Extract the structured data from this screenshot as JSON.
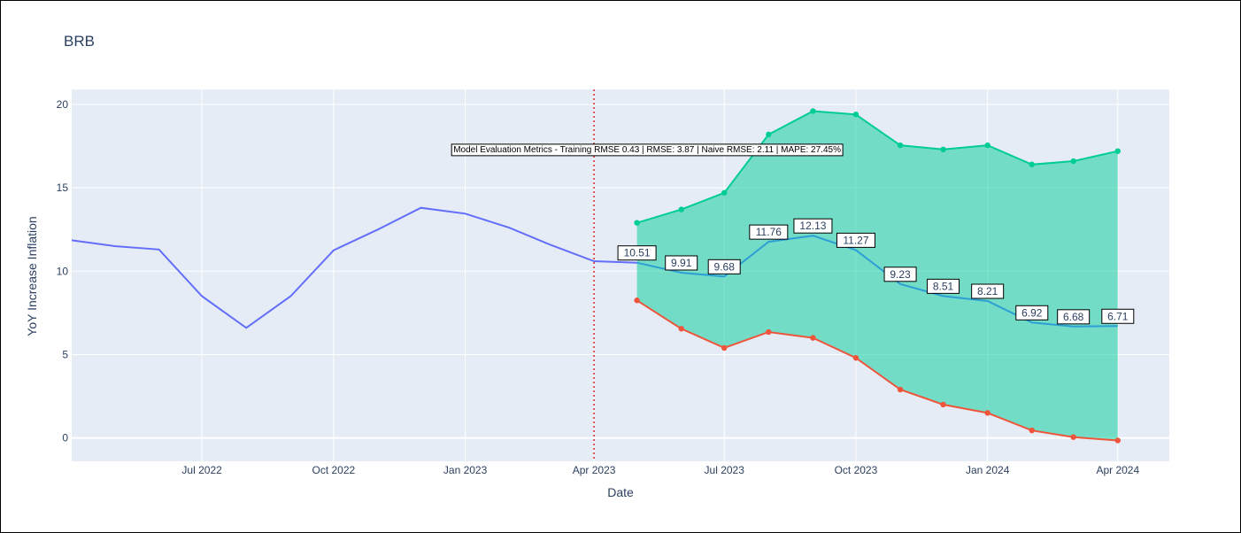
{
  "chart_data": {
    "type": "line",
    "title": "BRB",
    "xlabel": "Date",
    "ylabel": "YoY Increase Inflation",
    "x_range": [
      "2022-04-01",
      "2024-05-07"
    ],
    "ylim": [
      -1.4,
      20.9
    ],
    "grid": true,
    "legend": "none",
    "x_ticks": [
      {
        "date": "2022-07-01",
        "label": "Jul 2022"
      },
      {
        "date": "2022-10-01",
        "label": "Oct 2022"
      },
      {
        "date": "2023-01-01",
        "label": "Jan 2023"
      },
      {
        "date": "2023-04-01",
        "label": "Apr 2023"
      },
      {
        "date": "2023-07-01",
        "label": "Jul 2023"
      },
      {
        "date": "2023-10-01",
        "label": "Oct 2023"
      },
      {
        "date": "2024-01-01",
        "label": "Jan 2024"
      },
      {
        "date": "2024-04-01",
        "label": "Apr 2024"
      }
    ],
    "y_ticks": [
      0,
      5,
      10,
      15,
      20
    ],
    "forecast_start": "2023-04-01",
    "annotation": "Model Evaluation Metrics - Training RMSE 0.43 | RMSE: 3.87 | Naive RMSE: 2.11 | MAPE: 27.45%",
    "actual": {
      "x": [
        "2022-04-01",
        "2022-05-01",
        "2022-06-01",
        "2022-07-01",
        "2022-08-01",
        "2022-09-01",
        "2022-10-01",
        "2022-11-01",
        "2022-12-01",
        "2023-01-01",
        "2023-02-01",
        "2023-03-01",
        "2023-04-01",
        "2023-05-01"
      ],
      "y": [
        11.85,
        11.5,
        11.3,
        8.5,
        6.6,
        8.5,
        11.25,
        12.5,
        13.8,
        13.45,
        12.6,
        11.6,
        10.6,
        10.51
      ]
    },
    "forecast": {
      "x": [
        "2023-05-01",
        "2023-06-01",
        "2023-07-01",
        "2023-08-01",
        "2023-09-01",
        "2023-10-01",
        "2023-11-01",
        "2023-12-01",
        "2024-01-01",
        "2024-02-01",
        "2024-03-01",
        "2024-04-01"
      ],
      "y": [
        10.51,
        9.91,
        9.68,
        11.76,
        12.13,
        11.27,
        9.23,
        8.51,
        8.21,
        6.92,
        6.68,
        6.71
      ],
      "labels": [
        "10.51",
        "9.91",
        "9.68",
        "11.76",
        "12.13",
        "11.27",
        "9.23",
        "8.51",
        "8.21",
        "6.92",
        "6.68",
        "6.71"
      ]
    },
    "upper_bound": {
      "x": [
        "2023-05-01",
        "2023-06-01",
        "2023-07-01",
        "2023-08-01",
        "2023-09-01",
        "2023-10-01",
        "2023-11-01",
        "2023-12-01",
        "2024-01-01",
        "2024-02-01",
        "2024-03-01",
        "2024-04-01"
      ],
      "y": [
        12.9,
        13.7,
        14.7,
        18.2,
        19.6,
        19.4,
        17.55,
        17.3,
        17.55,
        16.4,
        16.6,
        17.2
      ]
    },
    "lower_bound": {
      "x": [
        "2023-05-01",
        "2023-06-01",
        "2023-07-01",
        "2023-08-01",
        "2023-09-01",
        "2023-10-01",
        "2023-11-01",
        "2023-12-01",
        "2024-01-01",
        "2024-02-01",
        "2024-03-01",
        "2024-04-01"
      ],
      "y": [
        8.25,
        6.55,
        5.4,
        6.35,
        6.0,
        4.8,
        2.9,
        2.0,
        1.5,
        0.45,
        0.05,
        -0.15
      ]
    },
    "colors": {
      "actual": "#636efa",
      "forecast": "#2e9fd5",
      "upper": "#00cc96",
      "lower": "#ef553b",
      "band": "#00cc96",
      "plot_bg": "#e5ecf6",
      "grid": "#ffffff",
      "vline": "#d62728"
    }
  }
}
